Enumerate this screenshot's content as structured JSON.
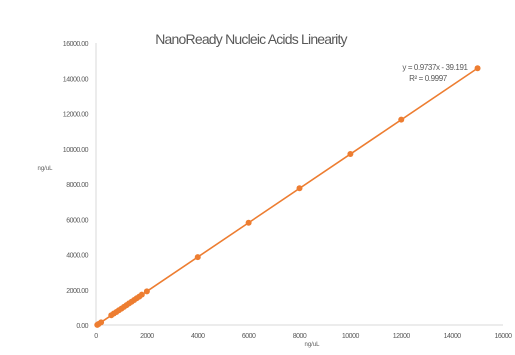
{
  "chart_data": {
    "type": "scatter",
    "title": "NanoReady        Nucleic Acids Linearity",
    "xlabel": "ng/uL",
    "ylabel": "ng/uL",
    "xlim": [
      0,
      16000
    ],
    "ylim": [
      0,
      16000
    ],
    "x_ticks": [
      "0",
      "2000",
      "4000",
      "6000",
      "8000",
      "10000",
      "12000",
      "14000",
      "16000"
    ],
    "y_ticks": [
      "0.00",
      "2000.00",
      "4000.00",
      "6000.00",
      "8000.00",
      "10000.00",
      "12000.00",
      "14000.00",
      "16000.00"
    ],
    "grid": false,
    "legend": "none",
    "trendline": {
      "type": "linear",
      "slope": 0.9737,
      "intercept": -39.191,
      "equation": "y = 0.9737x     - 39.191",
      "r_squared": "R² = 0.9997"
    },
    "series": [
      {
        "color": "#ED7D31",
        "x": [
          50,
          100,
          200,
          600,
          700,
          800,
          900,
          1000,
          1100,
          1200,
          1300,
          1400,
          1500,
          1600,
          1700,
          1800,
          2000,
          4000,
          6000,
          8000,
          10000,
          12000,
          15000
        ],
        "y": [
          10,
          60,
          150,
          550,
          650,
          740,
          840,
          930,
          1030,
          1130,
          1230,
          1320,
          1420,
          1520,
          1610,
          1720,
          1910,
          3850,
          5800,
          7760,
          9700,
          11650,
          14570
        ]
      }
    ]
  }
}
